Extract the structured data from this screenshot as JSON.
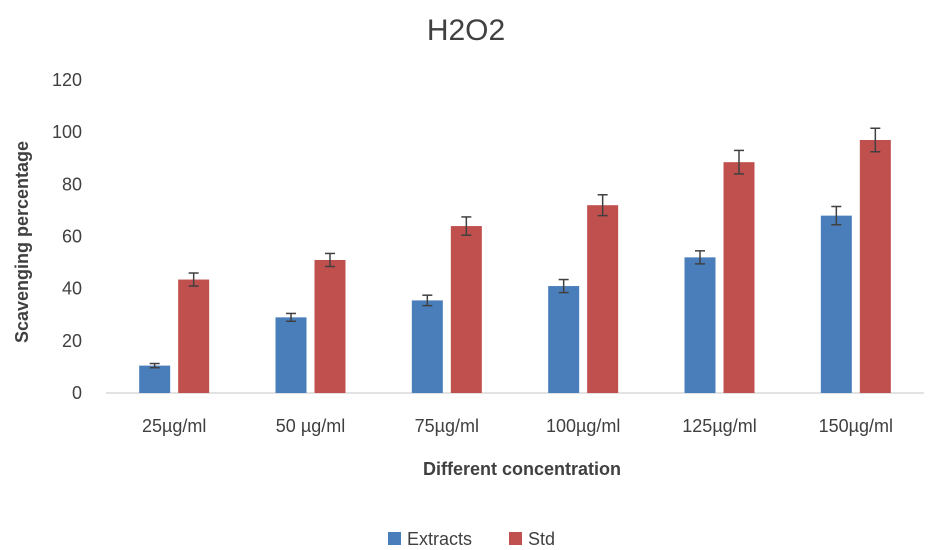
{
  "chart_data": {
    "type": "bar",
    "title": "H2O2",
    "xlabel": "Different concentration",
    "ylabel": "Scavenging  percentage",
    "categories": [
      "25µg/ml",
      "50 µg/ml",
      "75µg/ml",
      "100µg/ml",
      "125µg/ml",
      "150µg/ml"
    ],
    "ylim": [
      0,
      120
    ],
    "yticks": [
      0,
      20,
      40,
      60,
      80,
      100,
      120
    ],
    "grid": false,
    "legend_position": "bottom",
    "series": [
      {
        "name": "Extracts",
        "color": "#4a7ebb",
        "values": [
          10.5,
          29,
          35.5,
          41,
          52,
          68
        ],
        "errors": [
          0.8,
          1.5,
          2,
          2.5,
          2.5,
          3.5
        ]
      },
      {
        "name": "Std",
        "color": "#c0504d",
        "values": [
          43.5,
          51,
          64,
          72,
          88.5,
          97
        ],
        "errors": [
          2.5,
          2.5,
          3.5,
          4,
          4.5,
          4.5
        ]
      }
    ]
  }
}
